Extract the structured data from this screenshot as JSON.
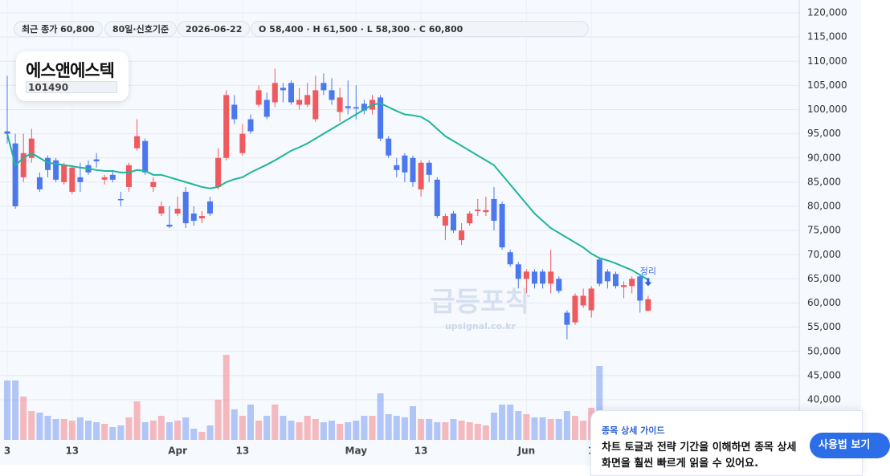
{
  "header": {
    "chips": [
      "최근 종가 60,800",
      "80일·신호기준",
      "2026-06-22",
      "O 58,400 · H 61,500 · L 58,300 · C 60,800"
    ]
  },
  "stock": {
    "name": "에스앤에스텍",
    "code": "101490"
  },
  "watermark": {
    "title": "급등포착",
    "url": "upsignal.co.kr"
  },
  "guide": {
    "title": "종목 상세 가이드",
    "lines": [
      "차트 토글과 전략 기간을 이해하면 종목 상세",
      "화면을 훨씬 빠르게 읽을 수 있어요."
    ],
    "button": "사용법 보기"
  },
  "chart_data": {
    "type": "candlestick",
    "categories": [
      "3",
      null,
      null,
      null,
      null,
      null,
      null,
      null,
      "13",
      null,
      null,
      null,
      null,
      null,
      null,
      null,
      null,
      null,
      null,
      null,
      null,
      "Apr",
      null,
      null,
      null,
      null,
      null,
      null,
      null,
      "13",
      null,
      null,
      null,
      null,
      null,
      null,
      null,
      null,
      null,
      null,
      null,
      null,
      null,
      "May",
      null,
      null,
      null,
      null,
      null,
      null,
      null,
      "13",
      null,
      null,
      null,
      null,
      null,
      null,
      null,
      null,
      null,
      null,
      null,
      null,
      "Jun",
      null,
      null,
      null,
      null,
      null,
      null,
      null,
      "1",
      null,
      null,
      null,
      null,
      null,
      null,
      null
    ],
    "open": [
      95500,
      93000,
      86000,
      90000,
      86000,
      90000,
      89500,
      85000,
      83000,
      86000,
      88500,
      89700,
      85500,
      86500,
      81500,
      84000,
      92000,
      93500,
      84000,
      78500,
      76200,
      78500,
      83000,
      78500,
      77500,
      81000,
      84000,
      90000,
      101000,
      91000,
      98000,
      101000,
      102000,
      101500,
      104500,
      105500,
      101000,
      101000,
      98000,
      105500,
      104000,
      99500,
      100700,
      100500,
      101200,
      100000,
      102500,
      94000,
      88500,
      90500,
      90000,
      83500,
      89000,
      85500,
      76000,
      78500,
      73000,
      76500,
      79000,
      78800,
      81500,
      80500,
      70500,
      68000,
      65000,
      66500,
      66500,
      64000,
      65000,
      58000,
      56000,
      59500,
      58500,
      69000,
      66500,
      66000,
      63300,
      63500,
      65500,
      58400
    ],
    "high": [
      107000,
      95000,
      95000,
      96000,
      87000,
      90500,
      90000,
      89000,
      88500,
      89000,
      89500,
      91000,
      86500,
      87500,
      83000,
      89000,
      98000,
      94000,
      86000,
      81000,
      80000,
      82000,
      84000,
      80000,
      79000,
      82000,
      92000,
      104000,
      103000,
      97000,
      99000,
      105000,
      103500,
      108500,
      105500,
      106000,
      104500,
      105500,
      107000,
      107500,
      106500,
      104500,
      106000,
      105000,
      102000,
      103000,
      103000,
      94500,
      90000,
      91000,
      90500,
      89500,
      89500,
      86000,
      78500,
      79000,
      76500,
      79000,
      81500,
      82000,
      84000,
      81000,
      71000,
      68500,
      67000,
      67000,
      67000,
      71000,
      65500,
      58500,
      62000,
      63000,
      63500,
      69500,
      67000,
      66500,
      64500,
      65500,
      66000,
      61500
    ],
    "low": [
      93000,
      79500,
      85000,
      89000,
      83000,
      86000,
      85000,
      84500,
      82500,
      83000,
      86500,
      88000,
      84500,
      85000,
      80000,
      83000,
      91500,
      86500,
      83000,
      78000,
      75500,
      78000,
      75500,
      76000,
      76500,
      78000,
      83500,
      89500,
      97000,
      90500,
      95000,
      100500,
      98000,
      100500,
      101500,
      101000,
      100000,
      100500,
      97500,
      103000,
      101000,
      97500,
      99000,
      98000,
      99000,
      99000,
      93500,
      90000,
      86000,
      85000,
      84000,
      82000,
      85000,
      77500,
      73000,
      74500,
      72000,
      76000,
      78000,
      78000,
      75000,
      71000,
      67500,
      63000,
      62000,
      63000,
      63000,
      62000,
      62000,
      52500,
      55500,
      59000,
      57000,
      63500,
      63000,
      63000,
      61000,
      62000,
      58000,
      58300
    ],
    "close": [
      95000,
      80000,
      91000,
      94000,
      83500,
      87500,
      85500,
      88500,
      88000,
      85000,
      87000,
      89300,
      86000,
      85500,
      81400,
      88500,
      94500,
      87000,
      85000,
      80000,
      75800,
      79500,
      76500,
      77000,
      78000,
      78500,
      90000,
      103000,
      98000,
      95000,
      95500,
      104000,
      98500,
      105500,
      104000,
      101500,
      102000,
      103000,
      104000,
      104000,
      102000,
      102500,
      100300,
      100200,
      99800,
      102000,
      94000,
      90500,
      87500,
      87000,
      85000,
      89000,
      86500,
      78000,
      78000,
      75000,
      75000,
      78500,
      79300,
      79200,
      77000,
      71500,
      68000,
      65000,
      66500,
      64000,
      64000,
      66500,
      62500,
      55500,
      61500,
      61500,
      63000,
      64000,
      64500,
      63500,
      63700,
      65000,
      60500,
      60800
    ],
    "volume": [
      74,
      74,
      54,
      36,
      34,
      30,
      26,
      26,
      24,
      28,
      24,
      22,
      20,
      16,
      18,
      28,
      48,
      22,
      24,
      30,
      22,
      24,
      28,
      14,
      10,
      18,
      50,
      106,
      38,
      30,
      44,
      24,
      30,
      44,
      30,
      24,
      22,
      30,
      26,
      22,
      24,
      20,
      22,
      24,
      30,
      30,
      58,
      32,
      30,
      28,
      42,
      26,
      26,
      22,
      22,
      26,
      24,
      22,
      20,
      18,
      34,
      44,
      44,
      36,
      32,
      28,
      28,
      26,
      26,
      36,
      30,
      24,
      40,
      92,
      30,
      28,
      26,
      24,
      30,
      26
    ],
    "ma": {
      "color": "#1fb59b",
      "values": [
        95000,
        88500,
        90000,
        91000,
        90000,
        89000,
        88800,
        88500,
        88300,
        88000,
        87800,
        87500,
        87300,
        87300,
        87000,
        87000,
        87500,
        87300,
        86500,
        86500,
        86000,
        85500,
        85000,
        84500,
        84000,
        83700,
        84000,
        85000,
        85600,
        86000,
        87000,
        87800,
        88600,
        89500,
        90500,
        91500,
        92200,
        93000,
        94000,
        95000,
        96000,
        97000,
        98000,
        99000,
        100000,
        101000,
        101300,
        100500,
        99700,
        99000,
        98800,
        98500,
        97500,
        96000,
        94500,
        93500,
        92500,
        91500,
        90500,
        89500,
        88500,
        86500,
        84500,
        82500,
        80500,
        78500,
        77000,
        75500,
        74500,
        73500,
        72500,
        71500,
        70200,
        69300,
        68800,
        68200,
        67500,
        66800,
        65800,
        64800
      ]
    },
    "up_color": "#ef5a5f",
    "down_color": "#4c78ee",
    "annotation": "정리",
    "ylim": [
      40000,
      120000
    ],
    "yticks": [
      {
        "value": 40000,
        "label": "40,000"
      },
      {
        "value": 45000,
        "label": "45,000"
      },
      {
        "value": 50000,
        "label": "50,000"
      },
      {
        "value": 55000,
        "label": "55,000"
      },
      {
        "value": 60000,
        "label": "60,000"
      },
      {
        "value": 65000,
        "label": "65,000"
      },
      {
        "value": 70000,
        "label": "70,000"
      },
      {
        "value": 75000,
        "label": "75,000"
      },
      {
        "value": 80000,
        "label": "80,000"
      },
      {
        "value": 85000,
        "label": "85,000"
      },
      {
        "value": 90000,
        "label": "90,000"
      },
      {
        "value": 95000,
        "label": "95,000"
      },
      {
        "value": 100000,
        "label": "100,000"
      },
      {
        "value": 105000,
        "label": "105,000"
      },
      {
        "value": 110000,
        "label": "110,000"
      },
      {
        "value": 115000,
        "label": "115,000"
      },
      {
        "value": 120000,
        "label": "120,000"
      }
    ],
    "grid": true
  }
}
